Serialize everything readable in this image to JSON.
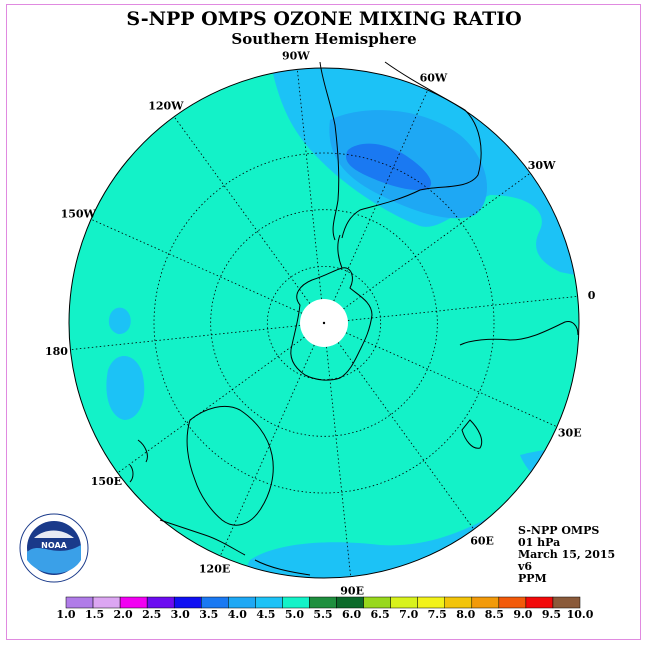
{
  "header": {
    "title": "S-NPP OMPS OZONE MIXING RATIO",
    "subtitle": "Southern Hemisphere"
  },
  "map": {
    "longitude_labels": [
      {
        "text": "90W",
        "lon": -90
      },
      {
        "text": "60W",
        "lon": -60
      },
      {
        "text": "30W",
        "lon": -30
      },
      {
        "text": "0",
        "lon": 0
      },
      {
        "text": "30E",
        "lon": 30
      },
      {
        "text": "60E",
        "lon": 60
      },
      {
        "text": "90E",
        "lon": 90
      },
      {
        "text": "120E",
        "lon": 120
      },
      {
        "text": "150E",
        "lon": 150
      },
      {
        "text": "180",
        "lon": 180
      },
      {
        "text": "150W",
        "lon": -150
      },
      {
        "text": "120W",
        "lon": -120
      }
    ],
    "latitude_circles": [
      -30,
      -50,
      -70
    ],
    "colors": {
      "background_field": "#13f2c8",
      "field_3_5_to_4_0": "#1ea8f4",
      "field_3_0_to_3_5": "#1a79f2",
      "field_4_0_to_4_5": "#1cc2f6",
      "no_data": "#ffffff"
    }
  },
  "info_block": {
    "instrument": "S-NPP OMPS",
    "level": "01 hPa",
    "date": "March 15, 2015",
    "version": "v6",
    "units": "PPM"
  },
  "colorbar": {
    "labels": [
      "1.0",
      "1.5",
      "2.0",
      "2.5",
      "3.0",
      "3.5",
      "4.0",
      "4.5",
      "5.0",
      "5.5",
      "6.0",
      "6.5",
      "7.0",
      "7.5",
      "8.0",
      "8.5",
      "9.0",
      "9.5",
      "10.0"
    ],
    "colors": [
      "#b07ce8",
      "#dca6f2",
      "#f200f2",
      "#6c0cf0",
      "#1010f2",
      "#1a79f2",
      "#1ea8f4",
      "#1cc2f6",
      "#13f2c8",
      "#1e8f3e",
      "#0b6a2a",
      "#98d81c",
      "#d8f21c",
      "#f2f21a",
      "#f2c40a",
      "#f29a0a",
      "#f25a0a",
      "#f20a0a",
      "#8a5a3a"
    ]
  },
  "logo": {
    "name": "NOAA",
    "ring_text": "NATIONAL OCEANIC AND ATMOSPHERIC ADMINISTRATION · U.S. DEPARTMENT OF COMMERCE"
  }
}
